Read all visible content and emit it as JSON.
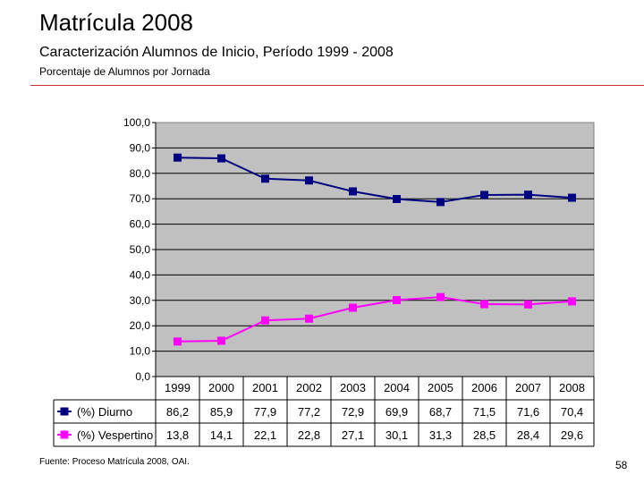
{
  "slide": {
    "title": "Matrícula 2008",
    "subtitle": "Caracterización Alumnos de Inicio, Período 1999 - 2008",
    "subsubtitle": "Porcentaje de Alumnos por Jornada",
    "source": "Fuente: Proceso Matrícula 2008, OAI.",
    "page_number": "58"
  },
  "chart_data": {
    "type": "line",
    "title": "",
    "xlabel": "",
    "ylabel": "",
    "ylim": [
      0,
      100
    ],
    "y_ticks": [
      "0,0",
      "10,0",
      "20,0",
      "30,0",
      "40,0",
      "50,0",
      "60,0",
      "70,0",
      "80,0",
      "90,0",
      "100,0"
    ],
    "grid": true,
    "plot_background": "#c0c0c0",
    "categories": [
      "1999",
      "2000",
      "2001",
      "2002",
      "2003",
      "2004",
      "2005",
      "2006",
      "2007",
      "2008"
    ],
    "series": [
      {
        "name": "(%) Diurno",
        "color": "#000080",
        "marker": "square",
        "values": [
          86.2,
          85.9,
          77.9,
          77.2,
          72.9,
          69.9,
          68.7,
          71.5,
          71.6,
          70.4
        ],
        "labels": [
          "86,2",
          "85,9",
          "77,9",
          "77,2",
          "72,9",
          "69,9",
          "68,7",
          "71,5",
          "71,6",
          "70,4"
        ]
      },
      {
        "name": "(%) Vespertino",
        "color": "#ff00ff",
        "marker": "square",
        "values": [
          13.8,
          14.1,
          22.1,
          22.8,
          27.1,
          30.1,
          31.3,
          28.5,
          28.4,
          29.6
        ],
        "labels": [
          "13,8",
          "14,1",
          "22,1",
          "22,8",
          "27,1",
          "30,1",
          "31,3",
          "28,5",
          "28,4",
          "29,6"
        ]
      }
    ]
  }
}
